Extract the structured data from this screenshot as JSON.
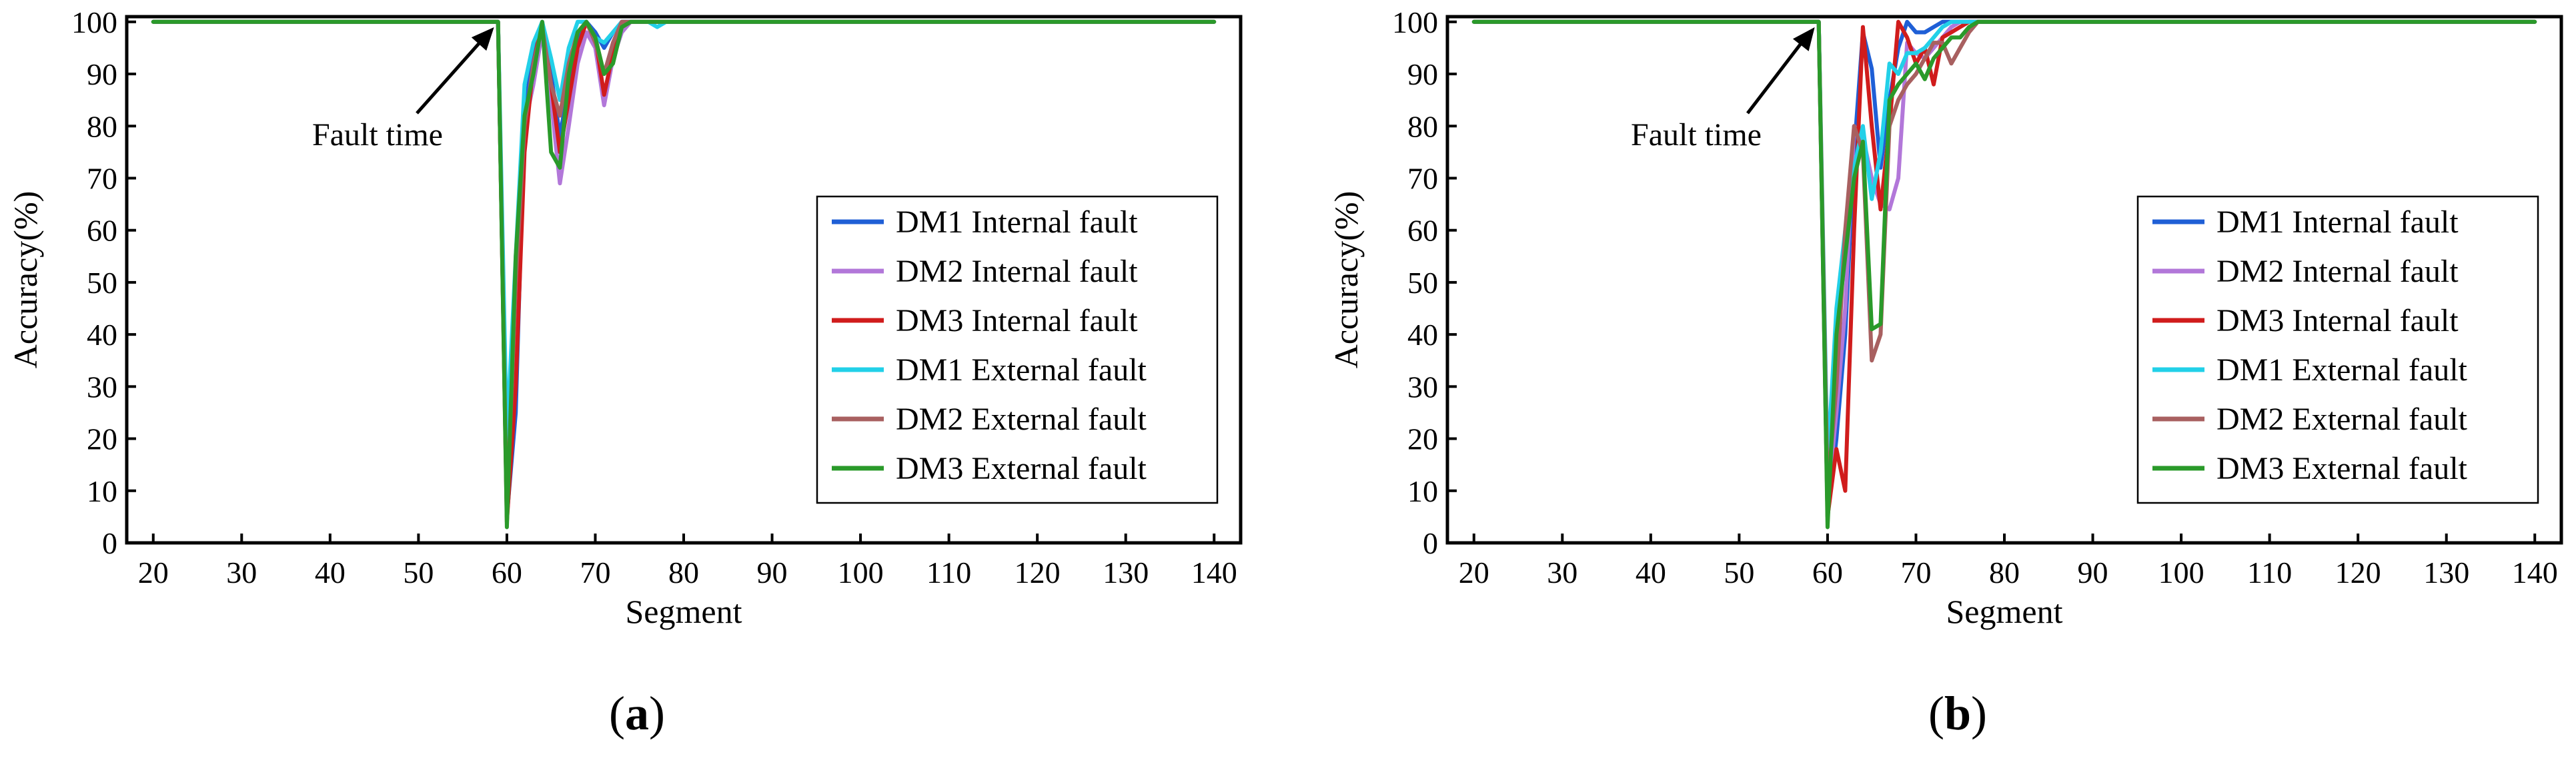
{
  "figure": {
    "panels": [
      "a",
      "b"
    ]
  },
  "chart_data": [
    {
      "type": "line",
      "panel_label": "a",
      "xlabel": "Segment",
      "ylabel": "Accuracy(%)",
      "xlim": [
        17,
        143
      ],
      "ylim": [
        0,
        101
      ],
      "xticks": [
        20,
        30,
        40,
        50,
        60,
        70,
        80,
        90,
        100,
        110,
        120,
        130,
        140
      ],
      "yticks": [
        0,
        10,
        20,
        30,
        40,
        50,
        60,
        70,
        80,
        90,
        100
      ],
      "grid": false,
      "legend_position": "right",
      "annotation": {
        "text": "Fault time",
        "x": 59,
        "y": 100
      },
      "series": [
        {
          "name": "DM1 Internal fault",
          "color": "#1f5fd6",
          "points": [
            [
              20,
              100
            ],
            [
              59,
              100
            ],
            [
              60,
              5
            ],
            [
              61,
              25
            ],
            [
              62,
              82
            ],
            [
              63,
              95
            ],
            [
              64,
              100
            ],
            [
              65,
              90
            ],
            [
              66,
              78
            ],
            [
              67,
              88
            ],
            [
              68,
              97
            ],
            [
              69,
              100
            ],
            [
              70,
              98
            ],
            [
              71,
              95
            ],
            [
              72,
              98
            ],
            [
              73,
              100
            ],
            [
              140,
              100
            ]
          ]
        },
        {
          "name": "DM2 Internal fault",
          "color": "#b277d9",
          "points": [
            [
              20,
              100
            ],
            [
              59,
              100
            ],
            [
              60,
              6
            ],
            [
              61,
              40
            ],
            [
              62,
              80
            ],
            [
              63,
              88
            ],
            [
              64,
              98
            ],
            [
              65,
              85
            ],
            [
              66,
              69
            ],
            [
              67,
              80
            ],
            [
              68,
              92
            ],
            [
              69,
              98
            ],
            [
              70,
              95
            ],
            [
              71,
              84
            ],
            [
              72,
              93
            ],
            [
              73,
              98
            ],
            [
              74,
              100
            ],
            [
              140,
              100
            ]
          ]
        },
        {
          "name": "DM3 Internal fault",
          "color": "#d01c1c",
          "points": [
            [
              20,
              100
            ],
            [
              59,
              100
            ],
            [
              60,
              4
            ],
            [
              61,
              30
            ],
            [
              62,
              75
            ],
            [
              63,
              92
            ],
            [
              64,
              100
            ],
            [
              65,
              88
            ],
            [
              66,
              75
            ],
            [
              67,
              85
            ],
            [
              68,
              95
            ],
            [
              69,
              100
            ],
            [
              70,
              97
            ],
            [
              71,
              86
            ],
            [
              72,
              94
            ],
            [
              73,
              99
            ],
            [
              74,
              100
            ],
            [
              140,
              100
            ]
          ]
        },
        {
          "name": "DM1 External fault",
          "color": "#22d0e8",
          "points": [
            [
              20,
              100
            ],
            [
              59,
              100
            ],
            [
              60,
              20
            ],
            [
              61,
              55
            ],
            [
              62,
              88
            ],
            [
              63,
              96
            ],
            [
              64,
              100
            ],
            [
              65,
              93
            ],
            [
              66,
              85
            ],
            [
              67,
              95
            ],
            [
              68,
              100
            ],
            [
              69,
              100
            ],
            [
              70,
              97
            ],
            [
              71,
              96
            ],
            [
              72,
              98
            ],
            [
              73,
              100
            ],
            [
              76,
              100
            ],
            [
              77,
              99
            ],
            [
              78,
              100
            ],
            [
              140,
              100
            ]
          ]
        },
        {
          "name": "DM2 External fault",
          "color": "#a86060",
          "points": [
            [
              20,
              100
            ],
            [
              59,
              100
            ],
            [
              60,
              5
            ],
            [
              61,
              50
            ],
            [
              62,
              80
            ],
            [
              63,
              92
            ],
            [
              64,
              99
            ],
            [
              65,
              88
            ],
            [
              66,
              82
            ],
            [
              67,
              92
            ],
            [
              68,
              98
            ],
            [
              69,
              100
            ],
            [
              70,
              96
            ],
            [
              71,
              90
            ],
            [
              72,
              96
            ],
            [
              73,
              100
            ],
            [
              140,
              100
            ]
          ]
        },
        {
          "name": "DM3 External fault",
          "color": "#2a9a2a",
          "points": [
            [
              20,
              100
            ],
            [
              59,
              100
            ],
            [
              60,
              3
            ],
            [
              61,
              55
            ],
            [
              62,
              82
            ],
            [
              63,
              90
            ],
            [
              64,
              100
            ],
            [
              65,
              75
            ],
            [
              66,
              72
            ],
            [
              67,
              90
            ],
            [
              68,
              98
            ],
            [
              69,
              100
            ],
            [
              70,
              97
            ],
            [
              71,
              90
            ],
            [
              72,
              92
            ],
            [
              73,
              99
            ],
            [
              74,
              100
            ],
            [
              140,
              100
            ]
          ]
        }
      ]
    },
    {
      "type": "line",
      "panel_label": "b",
      "xlabel": "Segment",
      "ylabel": "Accuracy(%)",
      "xlim": [
        17,
        143
      ],
      "ylim": [
        0,
        101
      ],
      "xticks": [
        20,
        30,
        40,
        50,
        60,
        70,
        80,
        90,
        100,
        110,
        120,
        130,
        140
      ],
      "yticks": [
        0,
        10,
        20,
        30,
        40,
        50,
        60,
        70,
        80,
        90,
        100
      ],
      "grid": false,
      "legend_position": "right",
      "annotation": {
        "text": "Fault time",
        "x": 59,
        "y": 100
      },
      "series": [
        {
          "name": "DM1 Internal fault",
          "color": "#1f5fd6",
          "points": [
            [
              20,
              100
            ],
            [
              59,
              100
            ],
            [
              60,
              5
            ],
            [
              61,
              20
            ],
            [
              62,
              40
            ],
            [
              63,
              75
            ],
            [
              64,
              98
            ],
            [
              65,
              91
            ],
            [
              66,
              72
            ],
            [
              67,
              85
            ],
            [
              68,
              95
            ],
            [
              69,
              100
            ],
            [
              70,
              98
            ],
            [
              71,
              98
            ],
            [
              72,
              99
            ],
            [
              73,
              100
            ],
            [
              140,
              100
            ]
          ]
        },
        {
          "name": "DM2 Internal fault",
          "color": "#b277d9",
          "points": [
            [
              20,
              100
            ],
            [
              59,
              100
            ],
            [
              60,
              8
            ],
            [
              61,
              25
            ],
            [
              62,
              45
            ],
            [
              63,
              80
            ],
            [
              64,
              78
            ],
            [
              65,
              70
            ],
            [
              66,
              65
            ],
            [
              67,
              64
            ],
            [
              68,
              70
            ],
            [
              69,
              96
            ],
            [
              70,
              94
            ],
            [
              71,
              93
            ],
            [
              72,
              95
            ],
            [
              73,
              97
            ],
            [
              74,
              99
            ],
            [
              75,
              100
            ],
            [
              140,
              100
            ]
          ]
        },
        {
          "name": "DM3 Internal fault",
          "color": "#d01c1c",
          "points": [
            [
              20,
              100
            ],
            [
              59,
              100
            ],
            [
              60,
              5
            ],
            [
              61,
              18
            ],
            [
              62,
              10
            ],
            [
              63,
              60
            ],
            [
              64,
              99
            ],
            [
              65,
              80
            ],
            [
              66,
              64
            ],
            [
              67,
              80
            ],
            [
              68,
              100
            ],
            [
              69,
              97
            ],
            [
              70,
              92
            ],
            [
              71,
              95
            ],
            [
              72,
              88
            ],
            [
              73,
              97
            ],
            [
              74,
              98
            ],
            [
              75,
              99
            ],
            [
              76,
              100
            ],
            [
              140,
              100
            ]
          ]
        },
        {
          "name": "DM1 External fault",
          "color": "#22d0e8",
          "points": [
            [
              20,
              100
            ],
            [
              59,
              100
            ],
            [
              60,
              15
            ],
            [
              61,
              45
            ],
            [
              62,
              60
            ],
            [
              63,
              72
            ],
            [
              64,
              80
            ],
            [
              65,
              66
            ],
            [
              66,
              75
            ],
            [
              67,
              92
            ],
            [
              68,
              90
            ],
            [
              69,
              94
            ],
            [
              70,
              94
            ],
            [
              71,
              95
            ],
            [
              72,
              97
            ],
            [
              73,
              99
            ],
            [
              74,
              100
            ],
            [
              140,
              100
            ]
          ]
        },
        {
          "name": "DM2 External fault",
          "color": "#a86060",
          "points": [
            [
              20,
              100
            ],
            [
              59,
              100
            ],
            [
              60,
              10
            ],
            [
              61,
              30
            ],
            [
              62,
              60
            ],
            [
              63,
              80
            ],
            [
              64,
              75
            ],
            [
              65,
              35
            ],
            [
              66,
              40
            ],
            [
              67,
              80
            ],
            [
              68,
              85
            ],
            [
              69,
              88
            ],
            [
              70,
              90
            ],
            [
              71,
              93
            ],
            [
              72,
              96
            ],
            [
              73,
              96
            ],
            [
              74,
              92
            ],
            [
              75,
              95
            ],
            [
              76,
              98
            ],
            [
              77,
              100
            ],
            [
              140,
              100
            ]
          ]
        },
        {
          "name": "DM3 External fault",
          "color": "#2a9a2a",
          "points": [
            [
              20,
              100
            ],
            [
              59,
              100
            ],
            [
              60,
              3
            ],
            [
              61,
              40
            ],
            [
              62,
              55
            ],
            [
              63,
              70
            ],
            [
              64,
              77
            ],
            [
              65,
              41
            ],
            [
              66,
              42
            ],
            [
              67,
              85
            ],
            [
              68,
              88
            ],
            [
              69,
              90
            ],
            [
              70,
              92
            ],
            [
              71,
              89
            ],
            [
              72,
              93
            ],
            [
              73,
              95
            ],
            [
              74,
              97
            ],
            [
              75,
              97
            ],
            [
              76,
              99
            ],
            [
              77,
              100
            ],
            [
              140,
              100
            ]
          ]
        }
      ]
    }
  ]
}
